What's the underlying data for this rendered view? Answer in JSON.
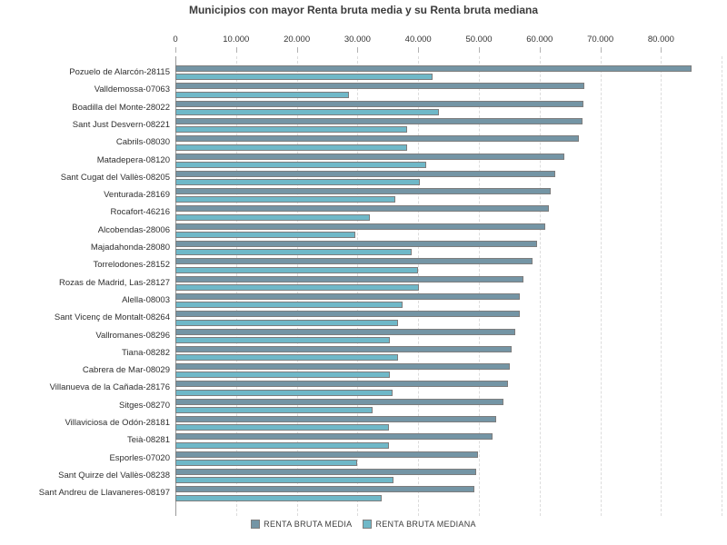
{
  "title": "Municipios con mayor Renta bruta media y su Renta bruta mediana",
  "colors": {
    "media": "#7495a5",
    "mediana": "#6fb8c8",
    "bar_border": "#7d7d7d",
    "grid": "#dcdcdc",
    "axis": "#9a9a9a",
    "title_text": "#3c3c3c",
    "label_text": "#2f2f2f"
  },
  "chart_data": {
    "type": "bar",
    "orientation": "horizontal",
    "title": "Municipios con mayor Renta bruta media y su Renta bruta mediana",
    "categories": [
      "Pozuelo de Alarcón-28115",
      "Valldemossa-07063",
      "Boadilla del Monte-28022",
      "Sant Just Desvern-08221",
      "Cabrils-08030",
      "Matadepera-08120",
      "Sant Cugat del Vallès-08205",
      "Venturada-28169",
      "Rocafort-46216",
      "Alcobendas-28006",
      "Majadahonda-28080",
      "Torrelodones-28152",
      "Rozas de Madrid, Las-28127",
      "Alella-08003",
      "Sant Vicenç de Montalt-08264",
      "Vallromanes-08296",
      "Tiana-08282",
      "Cabrera de Mar-08029",
      "Villanueva de la Cañada-28176",
      "Sitges-08270",
      "Villaviciosa de Odón-28181",
      "Teià-08281",
      "Esporles-07020",
      "Sant Quirze del Vallès-08238",
      "Sant Andreu de Llavaneres-08197"
    ],
    "series": [
      {
        "name": "RENTA BRUTA MEDIA",
        "color": "#7495a5",
        "values": [
          85100,
          67300,
          67200,
          67000,
          66400,
          64100,
          62600,
          61900,
          61600,
          61000,
          59600,
          58800,
          57300,
          56800,
          56700,
          56000,
          55400,
          55100,
          54800,
          54000,
          52800,
          52200,
          49900,
          49600,
          49200
        ]
      },
      {
        "name": "RENTA BRUTA MEDIANA",
        "color": "#6fb8c8",
        "values": [
          42300,
          28600,
          43400,
          38100,
          38100,
          41300,
          40200,
          36300,
          32100,
          29700,
          38900,
          39900,
          40100,
          37400,
          36700,
          35400,
          36700,
          35300,
          35800,
          32500,
          35200,
          35200,
          29900,
          35900,
          34000
        ]
      }
    ],
    "x_axis": {
      "position": "top",
      "range": [
        0,
        90000
      ],
      "tick_interval": 10000,
      "tick_labels": [
        "0",
        "10.000",
        "20.000",
        "30.000",
        "40.000",
        "50.000",
        "60.000",
        "70.000",
        "80.000"
      ],
      "grid": "dashed-vertical"
    },
    "legend": {
      "position": "bottom",
      "entries": [
        "RENTA BRUTA MEDIA",
        "RENTA BRUTA MEDIANA"
      ]
    }
  }
}
